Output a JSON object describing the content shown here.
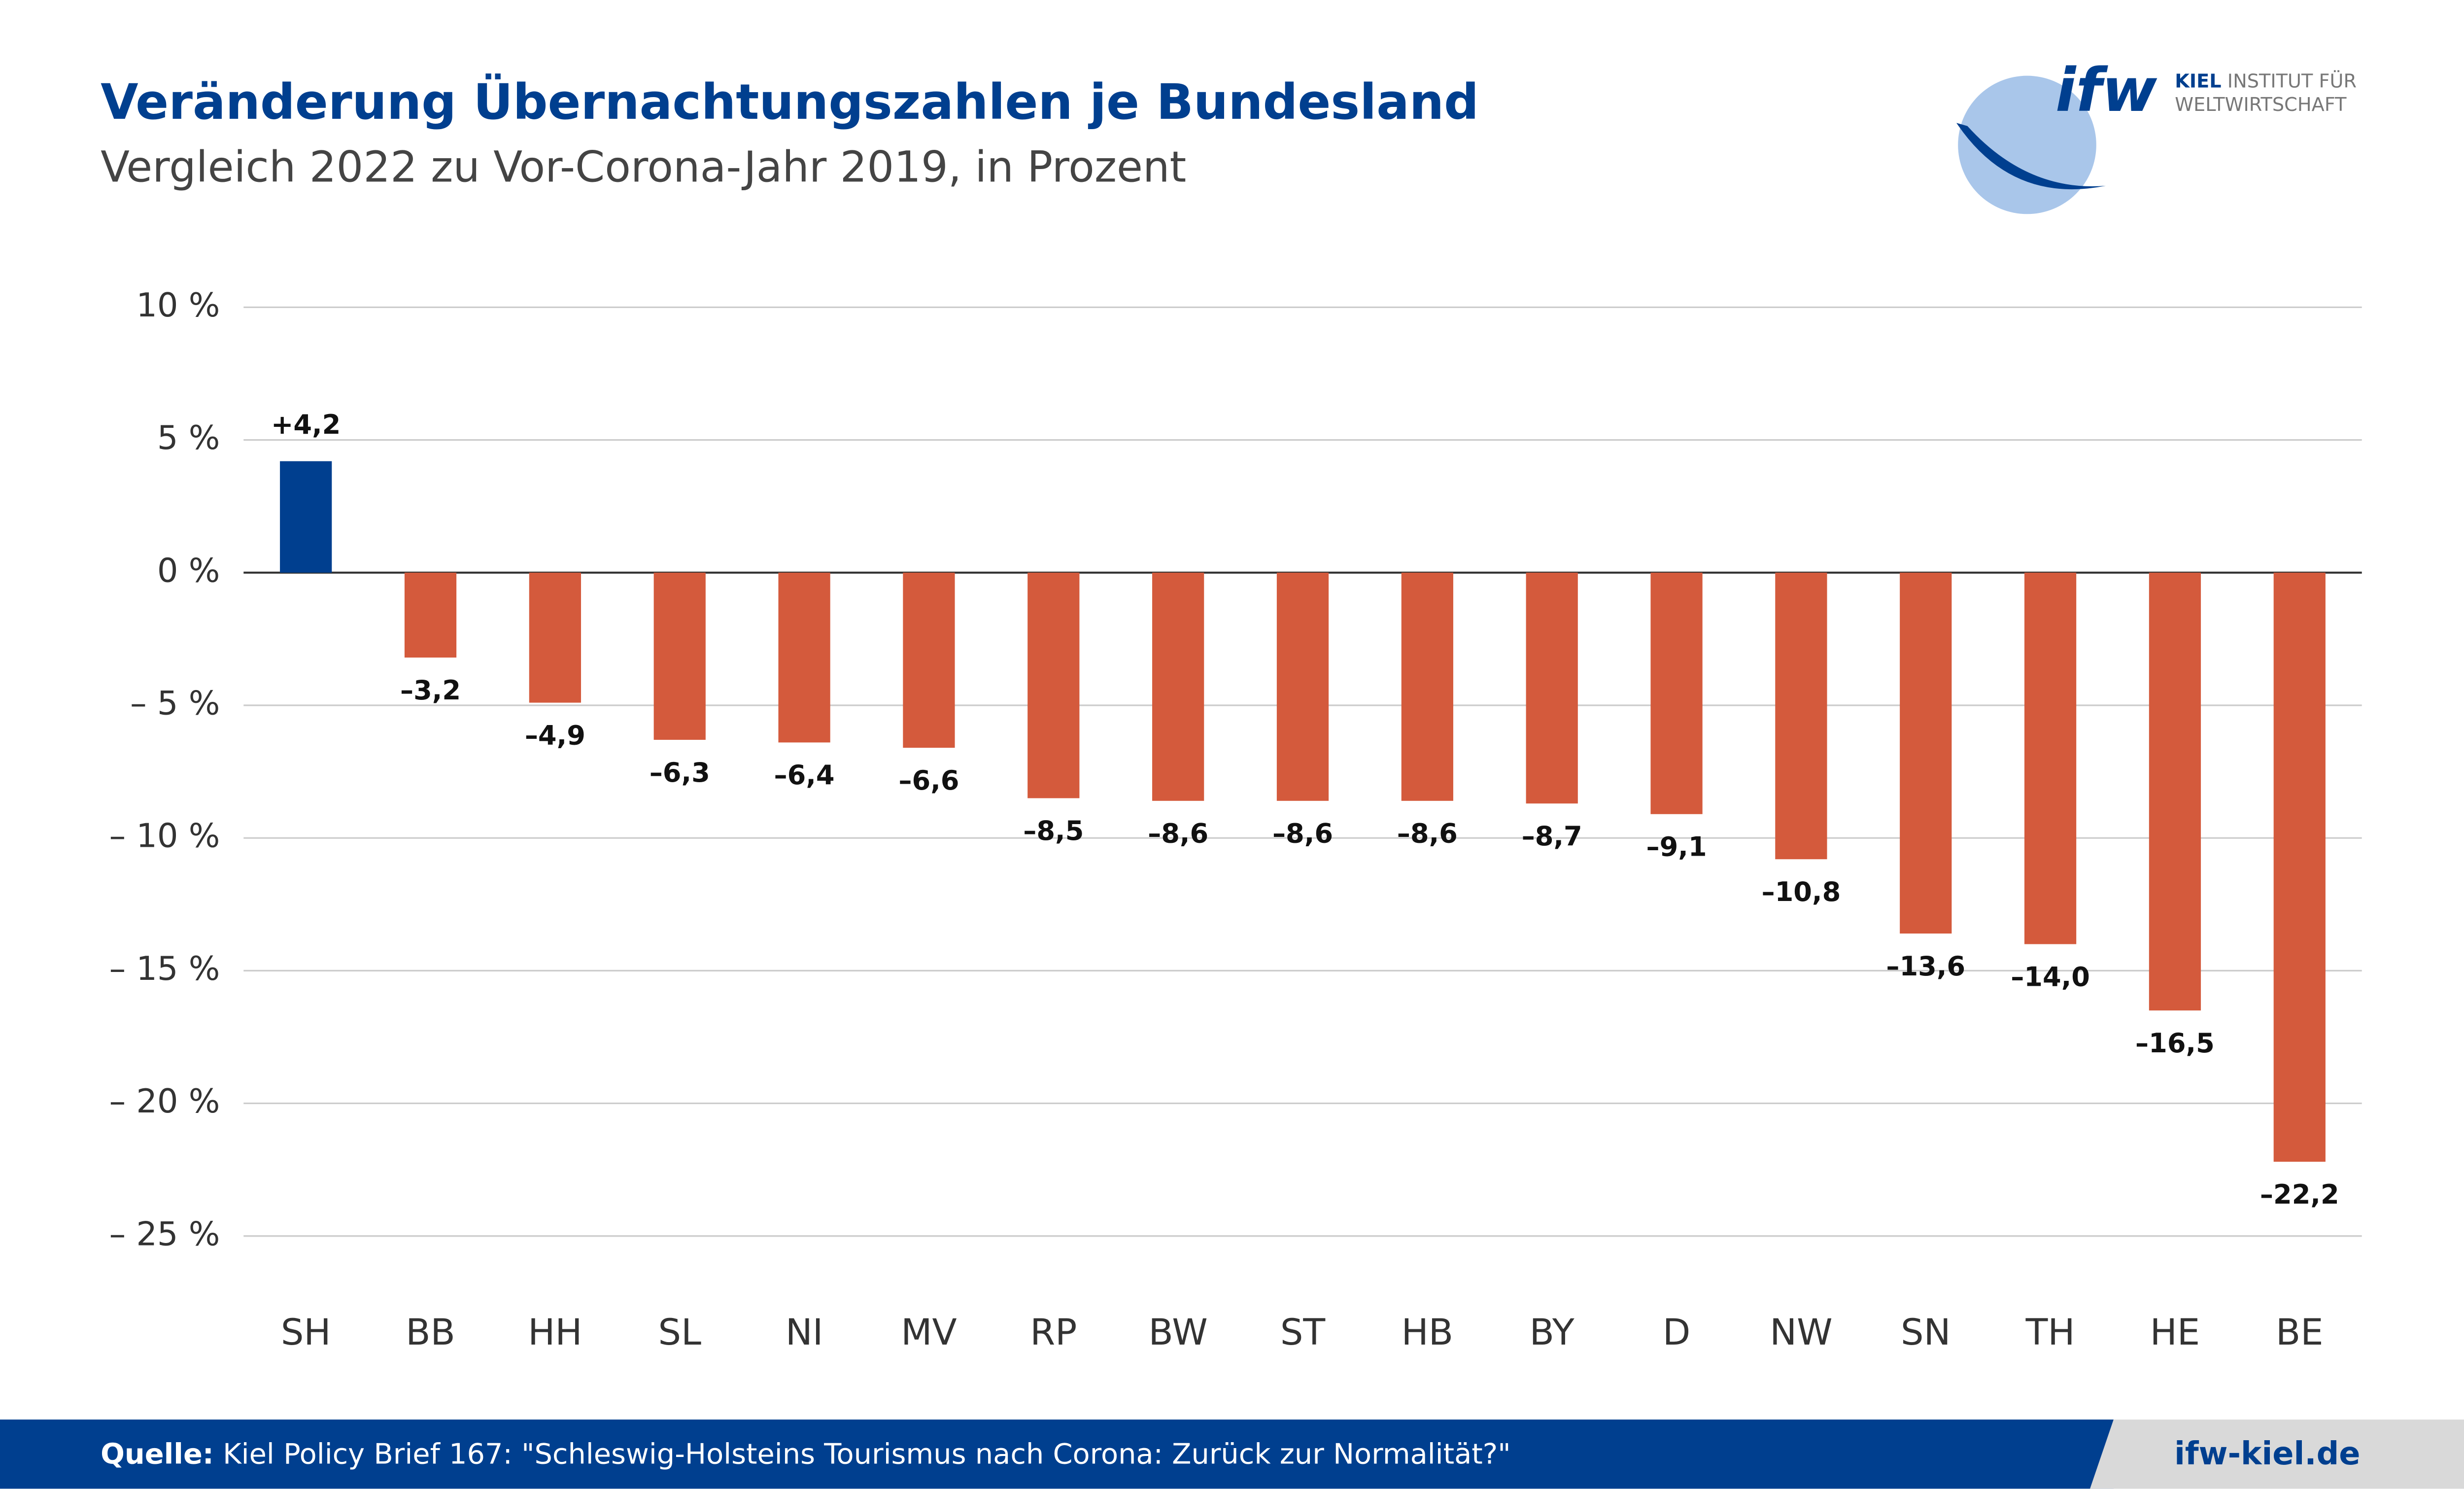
{
  "chart_data": {
    "type": "bar",
    "title": "Veränderung Übernachtungszahlen je Bundesland",
    "subtitle": "Vergleich 2022 zu Vor-Corona-Jahr 2019, in Prozent",
    "categories": [
      "SH",
      "BB",
      "HH",
      "SL",
      "NI",
      "MV",
      "RP",
      "BW",
      "ST",
      "HB",
      "BY",
      "D",
      "NW",
      "SN",
      "TH",
      "HE",
      "BE"
    ],
    "values": [
      4.2,
      -3.2,
      -4.9,
      -6.3,
      -6.4,
      -6.6,
      -8.5,
      -8.6,
      -8.6,
      -8.6,
      -8.7,
      -9.1,
      -10.8,
      -13.6,
      -14.0,
      -16.5,
      -22.2
    ],
    "value_labels": [
      "+4,2",
      "–3,2",
      "–4,9",
      "–6,3",
      "–6,4",
      "–6,6",
      "–8,5",
      "–8,6",
      "–8,6",
      "–8,6",
      "–8,7",
      "–9,1",
      "–10,8",
      "–13,6",
      "–14,0",
      "–16,5",
      "–22,2"
    ],
    "colors": [
      "#003f8f",
      "#d45a3c",
      "#d45a3c",
      "#d45a3c",
      "#d45a3c",
      "#d45a3c",
      "#d45a3c",
      "#d45a3c",
      "#d45a3c",
      "#d45a3c",
      "#d45a3c",
      "#d45a3c",
      "#d45a3c",
      "#d45a3c",
      "#d45a3c",
      "#d45a3c",
      "#d45a3c"
    ],
    "ylim": [
      -27,
      11.5
    ],
    "yticks": [
      {
        "value": 10,
        "label": "10 %"
      },
      {
        "value": 5,
        "label": "5 %"
      },
      {
        "value": 0,
        "label": "0 %"
      },
      {
        "value": -5,
        "label": "– 5 %"
      },
      {
        "value": -10,
        "label": "– 10 %"
      },
      {
        "value": -15,
        "label": "– 15 %"
      },
      {
        "value": -20,
        "label": "– 20 %"
      },
      {
        "value": -25,
        "label": "– 25 %"
      }
    ],
    "grid": true
  },
  "logo": {
    "mark": "ifw",
    "name_bold": "KIEL",
    "name_1": "INSTITUT FÜR",
    "name_2": "WELTWIRTSCHAFT"
  },
  "footer": {
    "source_label": "Quelle:",
    "source": "Kiel Policy Brief 167: \"Schleswig-Holsteins Tourismus nach Corona: Zurück zur Normalität?\"",
    "website": "ifw-kiel.de"
  }
}
